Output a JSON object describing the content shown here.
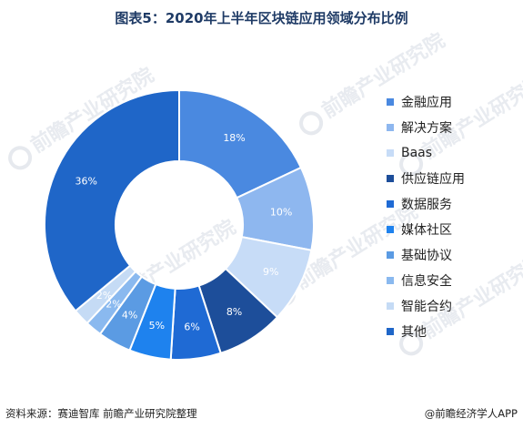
{
  "title": "图表5：2020年上半年区块链应用领域分布比例",
  "footer": {
    "source": "资料来源：赛迪智库 前瞻产业研究院整理",
    "credit": "@前瞻经济学人APP"
  },
  "watermark": {
    "text": "前瞻产业研究院"
  },
  "chart_data": {
    "type": "pie",
    "variant": "donut",
    "legend_placement": "right",
    "labels_inside_slices": true,
    "categories": [
      "金融应用",
      "解决方案",
      "Baas",
      "供应链应用",
      "数据服务",
      "媒体社区",
      "基础协议",
      "信息安全",
      "智能合约",
      "其他"
    ],
    "values": [
      18,
      10,
      9,
      8,
      6,
      5,
      4,
      2,
      2,
      36
    ],
    "value_labels": [
      "18%",
      "10%",
      "9%",
      "8%",
      "6%",
      "5%",
      "4%",
      "2%",
      "2%",
      "36%"
    ],
    "colors": [
      "#4a89e0",
      "#8eb7ef",
      "#c7dcf7",
      "#1d4e9a",
      "#1f6ad4",
      "#1e82ee",
      "#5b9be3",
      "#8ab9ef",
      "#c5dbf5",
      "#1f66c8"
    ],
    "label_colors": [
      "#ffffff",
      "#ffffff",
      "#ffffff",
      "#ffffff",
      "#ffffff",
      "#ffffff",
      "#ffffff",
      "#ffffff",
      "#ffffff",
      "#ffffff"
    ]
  }
}
